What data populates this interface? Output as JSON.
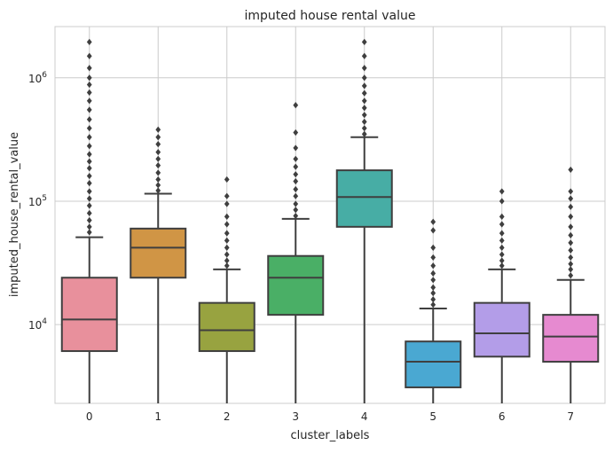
{
  "chart_data": {
    "type": "box",
    "title": "imputed house rental value",
    "xlabel": "cluster_labels",
    "ylabel": "imputed_house_rental_value",
    "yscale": "log",
    "ylim": [
      2300,
      2600000
    ],
    "grid": true,
    "categories": [
      "0",
      "1",
      "2",
      "3",
      "4",
      "5",
      "6",
      "7"
    ],
    "y_ticks": [
      {
        "value": 10000,
        "base": "10",
        "exp": "4"
      },
      {
        "value": 100000,
        "base": "10",
        "exp": "5"
      },
      {
        "value": 1000000,
        "base": "10",
        "exp": "6"
      }
    ],
    "boxes": [
      {
        "label": "0",
        "color": "#e8909c",
        "whisker_low": 2300,
        "q1": 6100,
        "median": 11000,
        "q3": 24000,
        "whisker_high": 51000,
        "outliers": [
          56000,
          62000,
          70000,
          80000,
          92000,
          105000,
          120000,
          140000,
          160000,
          185000,
          210000,
          240000,
          280000,
          330000,
          390000,
          460000,
          550000,
          650000,
          760000,
          880000,
          1000000,
          1200000,
          1500000,
          1950000
        ]
      },
      {
        "label": "1",
        "color": "#d09545",
        "whisker_low": 2300,
        "q1": 24000,
        "median": 42000,
        "q3": 60000,
        "whisker_high": 115000,
        "outliers": [
          122000,
          135000,
          150000,
          170000,
          195000,
          220000,
          250000,
          290000,
          330000,
          380000
        ]
      },
      {
        "label": "2",
        "color": "#98a340",
        "whisker_low": 2300,
        "q1": 6100,
        "median": 9000,
        "q3": 15000,
        "whisker_high": 28000,
        "outliers": [
          30000,
          33000,
          37000,
          42000,
          48000,
          55000,
          65000,
          75000,
          95000,
          110000,
          150000
        ]
      },
      {
        "label": "3",
        "color": "#4aaf66",
        "whisker_low": 2300,
        "q1": 12000,
        "median": 24000,
        "q3": 36000,
        "whisker_high": 72000,
        "outliers": [
          76000,
          85000,
          95000,
          110000,
          125000,
          145000,
          165000,
          190000,
          220000,
          270000,
          360000,
          600000
        ]
      },
      {
        "label": "4",
        "color": "#47ada5",
        "whisker_low": 2300,
        "q1": 62000,
        "median": 108000,
        "q3": 178000,
        "whisker_high": 330000,
        "outliers": [
          350000,
          390000,
          440000,
          500000,
          570000,
          650000,
          750000,
          860000,
          1000000,
          1200000,
          1500000,
          1950000
        ]
      },
      {
        "label": "5",
        "color": "#4aa8d2",
        "whisker_low": 2300,
        "q1": 3100,
        "median": 5000,
        "q3": 7300,
        "whisker_high": 13500,
        "outliers": [
          14500,
          16000,
          18000,
          20000,
          23000,
          26000,
          30000,
          35000,
          42000,
          58000,
          68000
        ]
      },
      {
        "label": "6",
        "color": "#b39de8",
        "whisker_low": 2300,
        "q1": 5500,
        "median": 8500,
        "q3": 15000,
        "whisker_high": 28000,
        "outliers": [
          30000,
          33000,
          37000,
          42000,
          48000,
          55000,
          65000,
          75000,
          100000,
          120000
        ]
      },
      {
        "label": "7",
        "color": "#e68ad0",
        "whisker_low": 2300,
        "q1": 5000,
        "median": 8000,
        "q3": 12000,
        "whisker_high": 23000,
        "outliers": [
          25000,
          28000,
          31000,
          35000,
          40000,
          46000,
          53000,
          62000,
          75000,
          90000,
          105000,
          120000,
          180000
        ]
      }
    ]
  }
}
